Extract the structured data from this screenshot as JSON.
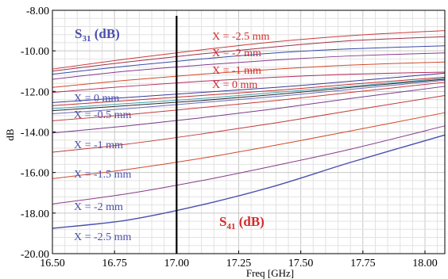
{
  "chart_data": {
    "type": "line",
    "title": "",
    "xlabel": "Freq [GHz]",
    "ylabel": "dB",
    "xlim": [
      16.5,
      18.08
    ],
    "ylim": [
      -20,
      -8
    ],
    "xticks": [
      "16.50",
      "16.75",
      "17.00",
      "17.25",
      "17.50",
      "17.75",
      "18.00"
    ],
    "yticks": [
      "-8.00",
      "-10.00",
      "-12.00",
      "-14.00",
      "-16.00",
      "-18.00",
      "-20.00"
    ],
    "grid": true,
    "marker_x": 17.0,
    "s31_title": {
      "main": "S",
      "sub": "31",
      "tail": " (dB)"
    },
    "s41_title": {
      "main": "S",
      "sub": "41",
      "tail": " (dB)"
    },
    "s31_labels": [
      "X = -2.5 mm",
      "X = -2 mm",
      "X = -1 mm",
      "X = 0 mm"
    ],
    "s41_labels": [
      "X = 0 mm",
      "X = -0.5 mm",
      "X = -1 mm",
      "X = -1.5 mm",
      "X = -2 mm",
      "X = -2.5 mm"
    ],
    "colors": {
      "s31": "#d42a2a",
      "s41": "#4a4fae",
      "line": "#000000"
    },
    "series": [
      {
        "x": [
          16.5,
          16.8,
          17.1,
          17.4,
          17.7,
          18.08
        ],
        "values": [
          -10.9,
          -10.4,
          -9.95,
          -9.55,
          -9.25,
          -9.0
        ],
        "color": "#cc3a3a"
      },
      {
        "x": [
          16.5,
          16.8,
          17.1,
          17.4,
          17.7,
          18.08
        ],
        "values": [
          -11.0,
          -10.55,
          -10.15,
          -9.8,
          -9.5,
          -9.3
        ],
        "color": "#a0304a"
      },
      {
        "x": [
          16.5,
          16.8,
          17.1,
          17.4,
          17.7,
          18.08
        ],
        "values": [
          -11.15,
          -10.75,
          -10.4,
          -10.1,
          -9.9,
          -9.75
        ],
        "color": "#3a4aa8"
      },
      {
        "x": [
          16.5,
          16.8,
          17.1,
          17.4,
          17.7,
          18.08
        ],
        "values": [
          -11.4,
          -11.0,
          -10.7,
          -10.45,
          -10.25,
          -10.1
        ],
        "color": "#8a3a8a"
      },
      {
        "x": [
          16.5,
          16.8,
          17.1,
          17.4,
          17.7,
          18.08
        ],
        "values": [
          -11.8,
          -11.45,
          -11.15,
          -10.9,
          -10.7,
          -10.55
        ],
        "color": "#d24a2a"
      },
      {
        "x": [
          16.5,
          16.8,
          17.1,
          17.4,
          17.7,
          18.08
        ],
        "values": [
          -12.05,
          -11.75,
          -11.5,
          -11.3,
          -11.15,
          -11.05
        ],
        "color": "#b82a5a"
      },
      {
        "x": [
          16.5,
          16.8,
          17.1,
          17.4,
          17.7,
          18.08
        ],
        "values": [
          -12.55,
          -12.3,
          -12.05,
          -11.8,
          -11.5,
          -11.1
        ],
        "color": "#3a3a9a"
      },
      {
        "x": [
          16.5,
          16.8,
          17.1,
          17.4,
          17.7,
          18.08
        ],
        "values": [
          -12.7,
          -12.45,
          -12.2,
          -11.95,
          -11.65,
          -11.3
        ],
        "color": "#c23030"
      },
      {
        "x": [
          16.5,
          16.8,
          17.1,
          17.4,
          17.7,
          18.08
        ],
        "values": [
          -12.85,
          -12.6,
          -12.35,
          -12.05,
          -11.75,
          -11.35
        ],
        "color": "#40a0b0"
      },
      {
        "x": [
          16.5,
          16.8,
          17.1,
          17.4,
          17.7,
          18.08
        ],
        "values": [
          -12.95,
          -12.7,
          -12.45,
          -12.15,
          -11.8,
          -11.4
        ],
        "color": "#2a2a2a"
      },
      {
        "x": [
          16.5,
          16.8,
          17.1,
          17.4,
          17.7,
          18.08
        ],
        "values": [
          -13.1,
          -12.85,
          -12.55,
          -12.25,
          -11.9,
          -11.45
        ],
        "color": "#6a6aba"
      },
      {
        "x": [
          16.5,
          16.8,
          17.1,
          17.4,
          17.7,
          18.08
        ],
        "values": [
          -13.45,
          -13.15,
          -12.8,
          -12.45,
          -12.05,
          -11.55
        ],
        "color": "#c83a3a"
      },
      {
        "x": [
          16.5,
          16.8,
          17.1,
          17.4,
          17.7,
          18.08
        ],
        "values": [
          -14.05,
          -13.7,
          -13.3,
          -12.85,
          -12.35,
          -11.75
        ],
        "color": "#7a3a8a"
      },
      {
        "x": [
          16.5,
          16.8,
          17.1,
          17.4,
          17.7,
          18.08
        ],
        "values": [
          -15.0,
          -14.6,
          -14.1,
          -13.55,
          -12.95,
          -12.2
        ],
        "color": "#c23a3a"
      },
      {
        "x": [
          16.5,
          16.8,
          17.1,
          17.4,
          17.7,
          18.08
        ],
        "values": [
          -16.3,
          -15.85,
          -15.3,
          -14.65,
          -13.95,
          -13.05
        ],
        "color": "#d44a2a"
      },
      {
        "x": [
          16.5,
          16.8,
          17.1,
          17.4,
          17.7,
          18.08
        ],
        "values": [
          -17.55,
          -17.05,
          -16.4,
          -15.65,
          -14.85,
          -13.7
        ],
        "color": "#8a3a8a"
      },
      {
        "x": [
          16.5,
          16.8,
          17.1,
          17.4,
          17.7,
          18.08
        ],
        "values": [
          -18.75,
          -18.35,
          -17.6,
          -16.65,
          -15.5,
          -14.15
        ],
        "color": "#4a4fae"
      }
    ]
  }
}
